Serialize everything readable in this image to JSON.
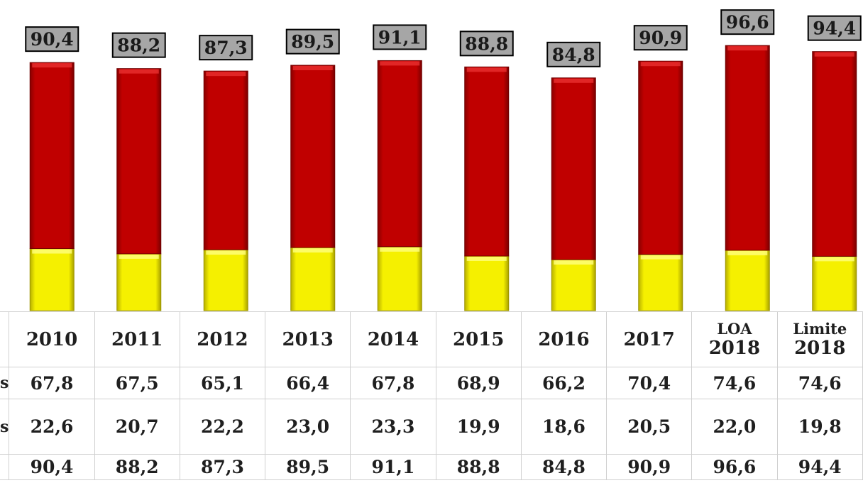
{
  "chart_data": {
    "type": "bar",
    "stacked": true,
    "categories": [
      "2010",
      "2011",
      "2012",
      "2013",
      "2014",
      "2015",
      "2016",
      "2017",
      "LOA 2018",
      "Limite 2018"
    ],
    "category_labels": [
      [
        "2010"
      ],
      [
        "2011"
      ],
      [
        "2012"
      ],
      [
        "2013"
      ],
      [
        "2014"
      ],
      [
        "2015"
      ],
      [
        "2016"
      ],
      [
        "2017"
      ],
      [
        "LOA",
        "2018"
      ],
      [
        "Limite",
        "2018"
      ]
    ],
    "series": [
      {
        "color": "#f5f000",
        "values": [
          22.6,
          20.7,
          22.2,
          23.0,
          23.3,
          19.9,
          18.6,
          20.5,
          22.0,
          19.8
        ]
      },
      {
        "color": "#c00000",
        "values": [
          67.8,
          67.5,
          65.1,
          66.4,
          67.8,
          68.9,
          66.2,
          70.4,
          74.6,
          74.6
        ]
      }
    ],
    "totals": [
      90.4,
      88.2,
      87.3,
      89.5,
      91.1,
      88.8,
      84.8,
      90.9,
      96.6,
      94.4
    ],
    "decimal_separator": ",",
    "legend": "none",
    "grid": false
  },
  "table": {
    "row_label_fragments": [
      "s",
      "s",
      ""
    ],
    "rows": [
      [
        "67,8",
        "67,5",
        "65,1",
        "66,4",
        "67,8",
        "68,9",
        "66,2",
        "70,4",
        "74,6",
        "74,6"
      ],
      [
        "22,6",
        "20,7",
        "22,2",
        "23,0",
        "23,3",
        "19,9",
        "18,6",
        "20,5",
        "22,0",
        "19,8"
      ],
      [
        "90,4",
        "88,2",
        "87,3",
        "89,5",
        "91,1",
        "88,8",
        "84,8",
        "90,9",
        "96,6",
        "94,4"
      ]
    ]
  },
  "colors": {
    "red": "#c00000",
    "yellow": "#f5f000",
    "label_bg": "#a6a6a6"
  }
}
